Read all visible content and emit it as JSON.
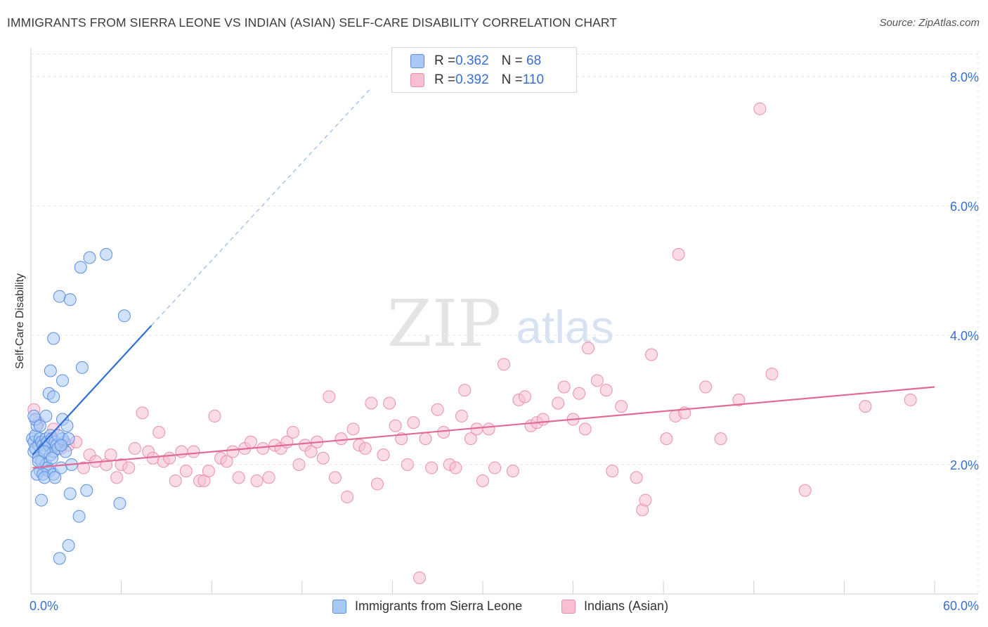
{
  "title": "IMMIGRANTS FROM SIERRA LEONE VS INDIAN (ASIAN) SELF-CARE DISABILITY CORRELATION CHART",
  "source": "Source: ZipAtlas.com",
  "watermark": {
    "zip": "ZIP",
    "atlas": "atlas"
  },
  "colors": {
    "blue_fill": "#a9c8f5",
    "blue_stroke": "#5b8fde",
    "blue_line": "#2f6fd6",
    "pink_fill": "#f7bfd1",
    "pink_stroke": "#e98fae",
    "pink_line": "#e06a95",
    "axis_text": "#3a6fd0",
    "grid": "#e3e3e3"
  },
  "legend": {
    "rows": [
      {
        "r_label": "R = ",
        "r_value": "0.362",
        "n_label": "N = ",
        "n_value": " 68"
      },
      {
        "r_label": "R = ",
        "r_value": "0.392",
        "n_label": "N = ",
        "n_value": "110"
      }
    ]
  },
  "chart_data": {
    "type": "scatter",
    "title": "IMMIGRANTS FROM SIERRA LEONE VS INDIAN (ASIAN) SELF-CARE DISABILITY CORRELATION CHART",
    "xlabel": "",
    "ylabel": "Self-Care Disability",
    "xlim": [
      0,
      60
    ],
    "ylim": [
      0,
      8.4
    ],
    "x_tick_labels": {
      "min": "0.0%",
      "max": "60.0%"
    },
    "y_ticks": [
      2,
      4,
      6,
      8
    ],
    "y_tick_labels": [
      "2.0%",
      "4.0%",
      "6.0%",
      "8.0%"
    ],
    "grid": true,
    "legend_position": "top-center",
    "series": [
      {
        "name": "Immigrants from Sierra Leone",
        "r": 0.362,
        "n": 68,
        "trend": {
          "x0": 0.1,
          "y0": 2.15,
          "x1": 8.0,
          "y1": 4.15,
          "dash_x1": 22.5,
          "dash_y1": 7.8
        },
        "points": [
          [
            0.1,
            2.4
          ],
          [
            0.2,
            2.35
          ],
          [
            0.3,
            2.45
          ],
          [
            0.2,
            2.2
          ],
          [
            0.4,
            2.6
          ],
          [
            0.5,
            2.3
          ],
          [
            0.3,
            2.25
          ],
          [
            0.6,
            2.4
          ],
          [
            0.7,
            2.35
          ],
          [
            0.8,
            2.3
          ],
          [
            0.5,
            2.1
          ],
          [
            0.6,
            1.9
          ],
          [
            0.4,
            1.85
          ],
          [
            0.7,
            2.05
          ],
          [
            0.9,
            2.25
          ],
          [
            1.0,
            2.4
          ],
          [
            1.1,
            2.35
          ],
          [
            1.2,
            2.3
          ],
          [
            1.3,
            2.45
          ],
          [
            1.4,
            2.4
          ],
          [
            1.0,
            2.0
          ],
          [
            1.1,
            1.95
          ],
          [
            1.2,
            1.9
          ],
          [
            0.8,
            1.85
          ],
          [
            0.9,
            1.8
          ],
          [
            1.3,
            2.15
          ],
          [
            1.5,
            2.2
          ],
          [
            1.6,
            2.35
          ],
          [
            1.7,
            2.3
          ],
          [
            1.8,
            2.25
          ],
          [
            1.5,
            1.85
          ],
          [
            1.6,
            1.8
          ],
          [
            2.0,
            1.95
          ],
          [
            2.2,
            2.35
          ],
          [
            2.3,
            2.2
          ],
          [
            2.1,
            2.4
          ],
          [
            0.3,
            2.7
          ],
          [
            0.2,
            2.75
          ],
          [
            0.6,
            2.6
          ],
          [
            1.0,
            2.75
          ],
          [
            2.1,
            2.7
          ],
          [
            2.4,
            2.6
          ],
          [
            2.5,
            2.4
          ],
          [
            1.2,
            3.1
          ],
          [
            1.5,
            3.05
          ],
          [
            1.3,
            3.45
          ],
          [
            2.1,
            3.3
          ],
          [
            3.4,
            3.5
          ],
          [
            1.5,
            3.95
          ],
          [
            1.9,
            4.6
          ],
          [
            2.6,
            4.55
          ],
          [
            3.3,
            5.05
          ],
          [
            3.9,
            5.2
          ],
          [
            5.0,
            5.25
          ],
          [
            6.2,
            4.3
          ],
          [
            0.7,
            1.45
          ],
          [
            2.6,
            1.55
          ],
          [
            3.7,
            1.6
          ],
          [
            5.9,
            1.4
          ],
          [
            3.2,
            1.2
          ],
          [
            2.5,
            0.75
          ],
          [
            1.9,
            0.55
          ],
          [
            0.9,
            2.2
          ],
          [
            1.4,
            2.1
          ],
          [
            2.7,
            2.0
          ],
          [
            0.5,
            2.05
          ],
          [
            1.8,
            2.45
          ],
          [
            2.0,
            2.3
          ]
        ]
      },
      {
        "name": "Indians (Asian)",
        "r": 0.392,
        "n": 110,
        "trend": {
          "x0": 0.1,
          "y0": 1.95,
          "x1": 60,
          "y1": 3.2
        },
        "points": [
          [
            0.2,
            2.85
          ],
          [
            0.5,
            2.65
          ],
          [
            1.0,
            2.35
          ],
          [
            1.5,
            2.55
          ],
          [
            2.0,
            2.25
          ],
          [
            2.5,
            2.3
          ],
          [
            3.0,
            2.35
          ],
          [
            3.5,
            1.95
          ],
          [
            3.9,
            2.15
          ],
          [
            4.3,
            2.05
          ],
          [
            5.0,
            2.0
          ],
          [
            5.3,
            2.15
          ],
          [
            5.7,
            1.8
          ],
          [
            6.0,
            2.0
          ],
          [
            6.5,
            1.95
          ],
          [
            6.9,
            2.25
          ],
          [
            7.4,
            2.8
          ],
          [
            7.8,
            2.2
          ],
          [
            8.1,
            2.1
          ],
          [
            8.5,
            2.5
          ],
          [
            8.8,
            2.05
          ],
          [
            9.2,
            2.1
          ],
          [
            9.6,
            1.75
          ],
          [
            10.0,
            2.2
          ],
          [
            10.3,
            1.9
          ],
          [
            10.8,
            2.2
          ],
          [
            11.2,
            1.75
          ],
          [
            11.5,
            1.75
          ],
          [
            11.8,
            1.9
          ],
          [
            12.2,
            2.75
          ],
          [
            12.6,
            2.1
          ],
          [
            13.0,
            2.05
          ],
          [
            13.4,
            2.2
          ],
          [
            13.8,
            1.8
          ],
          [
            14.2,
            2.25
          ],
          [
            14.6,
            2.35
          ],
          [
            15.0,
            1.75
          ],
          [
            15.4,
            2.25
          ],
          [
            15.8,
            1.8
          ],
          [
            16.2,
            2.3
          ],
          [
            16.6,
            2.25
          ],
          [
            17.0,
            2.35
          ],
          [
            17.4,
            2.5
          ],
          [
            17.8,
            2.0
          ],
          [
            18.2,
            2.3
          ],
          [
            18.6,
            2.2
          ],
          [
            19.0,
            2.35
          ],
          [
            19.4,
            2.1
          ],
          [
            19.8,
            3.05
          ],
          [
            20.2,
            1.8
          ],
          [
            20.6,
            2.4
          ],
          [
            21.0,
            1.5
          ],
          [
            21.4,
            2.55
          ],
          [
            21.8,
            2.3
          ],
          [
            22.2,
            2.25
          ],
          [
            22.6,
            2.95
          ],
          [
            23.0,
            1.7
          ],
          [
            23.4,
            2.15
          ],
          [
            23.8,
            2.95
          ],
          [
            24.2,
            2.6
          ],
          [
            24.6,
            2.4
          ],
          [
            25.0,
            2.0
          ],
          [
            25.4,
            2.65
          ],
          [
            25.8,
            0.25
          ],
          [
            26.2,
            2.4
          ],
          [
            26.6,
            1.95
          ],
          [
            27.0,
            2.85
          ],
          [
            27.4,
            2.5
          ],
          [
            27.8,
            2.0
          ],
          [
            28.2,
            1.95
          ],
          [
            28.6,
            2.75
          ],
          [
            28.8,
            3.15
          ],
          [
            29.2,
            2.4
          ],
          [
            29.6,
            2.55
          ],
          [
            30.0,
            1.75
          ],
          [
            30.4,
            2.55
          ],
          [
            30.8,
            1.95
          ],
          [
            31.4,
            3.55
          ],
          [
            32.0,
            1.9
          ],
          [
            32.4,
            3.0
          ],
          [
            32.8,
            3.05
          ],
          [
            33.2,
            2.6
          ],
          [
            33.6,
            2.65
          ],
          [
            34.0,
            2.7
          ],
          [
            35.0,
            2.95
          ],
          [
            35.4,
            3.2
          ],
          [
            36.0,
            2.7
          ],
          [
            36.4,
            3.1
          ],
          [
            36.8,
            2.55
          ],
          [
            37.0,
            3.8
          ],
          [
            37.6,
            3.3
          ],
          [
            38.2,
            3.15
          ],
          [
            38.6,
            1.9
          ],
          [
            39.2,
            2.9
          ],
          [
            40.2,
            1.8
          ],
          [
            40.6,
            1.3
          ],
          [
            40.8,
            1.45
          ],
          [
            41.2,
            3.7
          ],
          [
            42.2,
            2.4
          ],
          [
            42.8,
            2.75
          ],
          [
            43.4,
            2.8
          ],
          [
            44.8,
            3.2
          ],
          [
            45.8,
            2.4
          ],
          [
            47.0,
            3.0
          ],
          [
            48.4,
            7.5
          ],
          [
            49.2,
            3.4
          ],
          [
            51.4,
            1.6
          ],
          [
            55.4,
            2.9
          ],
          [
            58.4,
            3.0
          ],
          [
            43.0,
            5.25
          ]
        ]
      }
    ]
  }
}
